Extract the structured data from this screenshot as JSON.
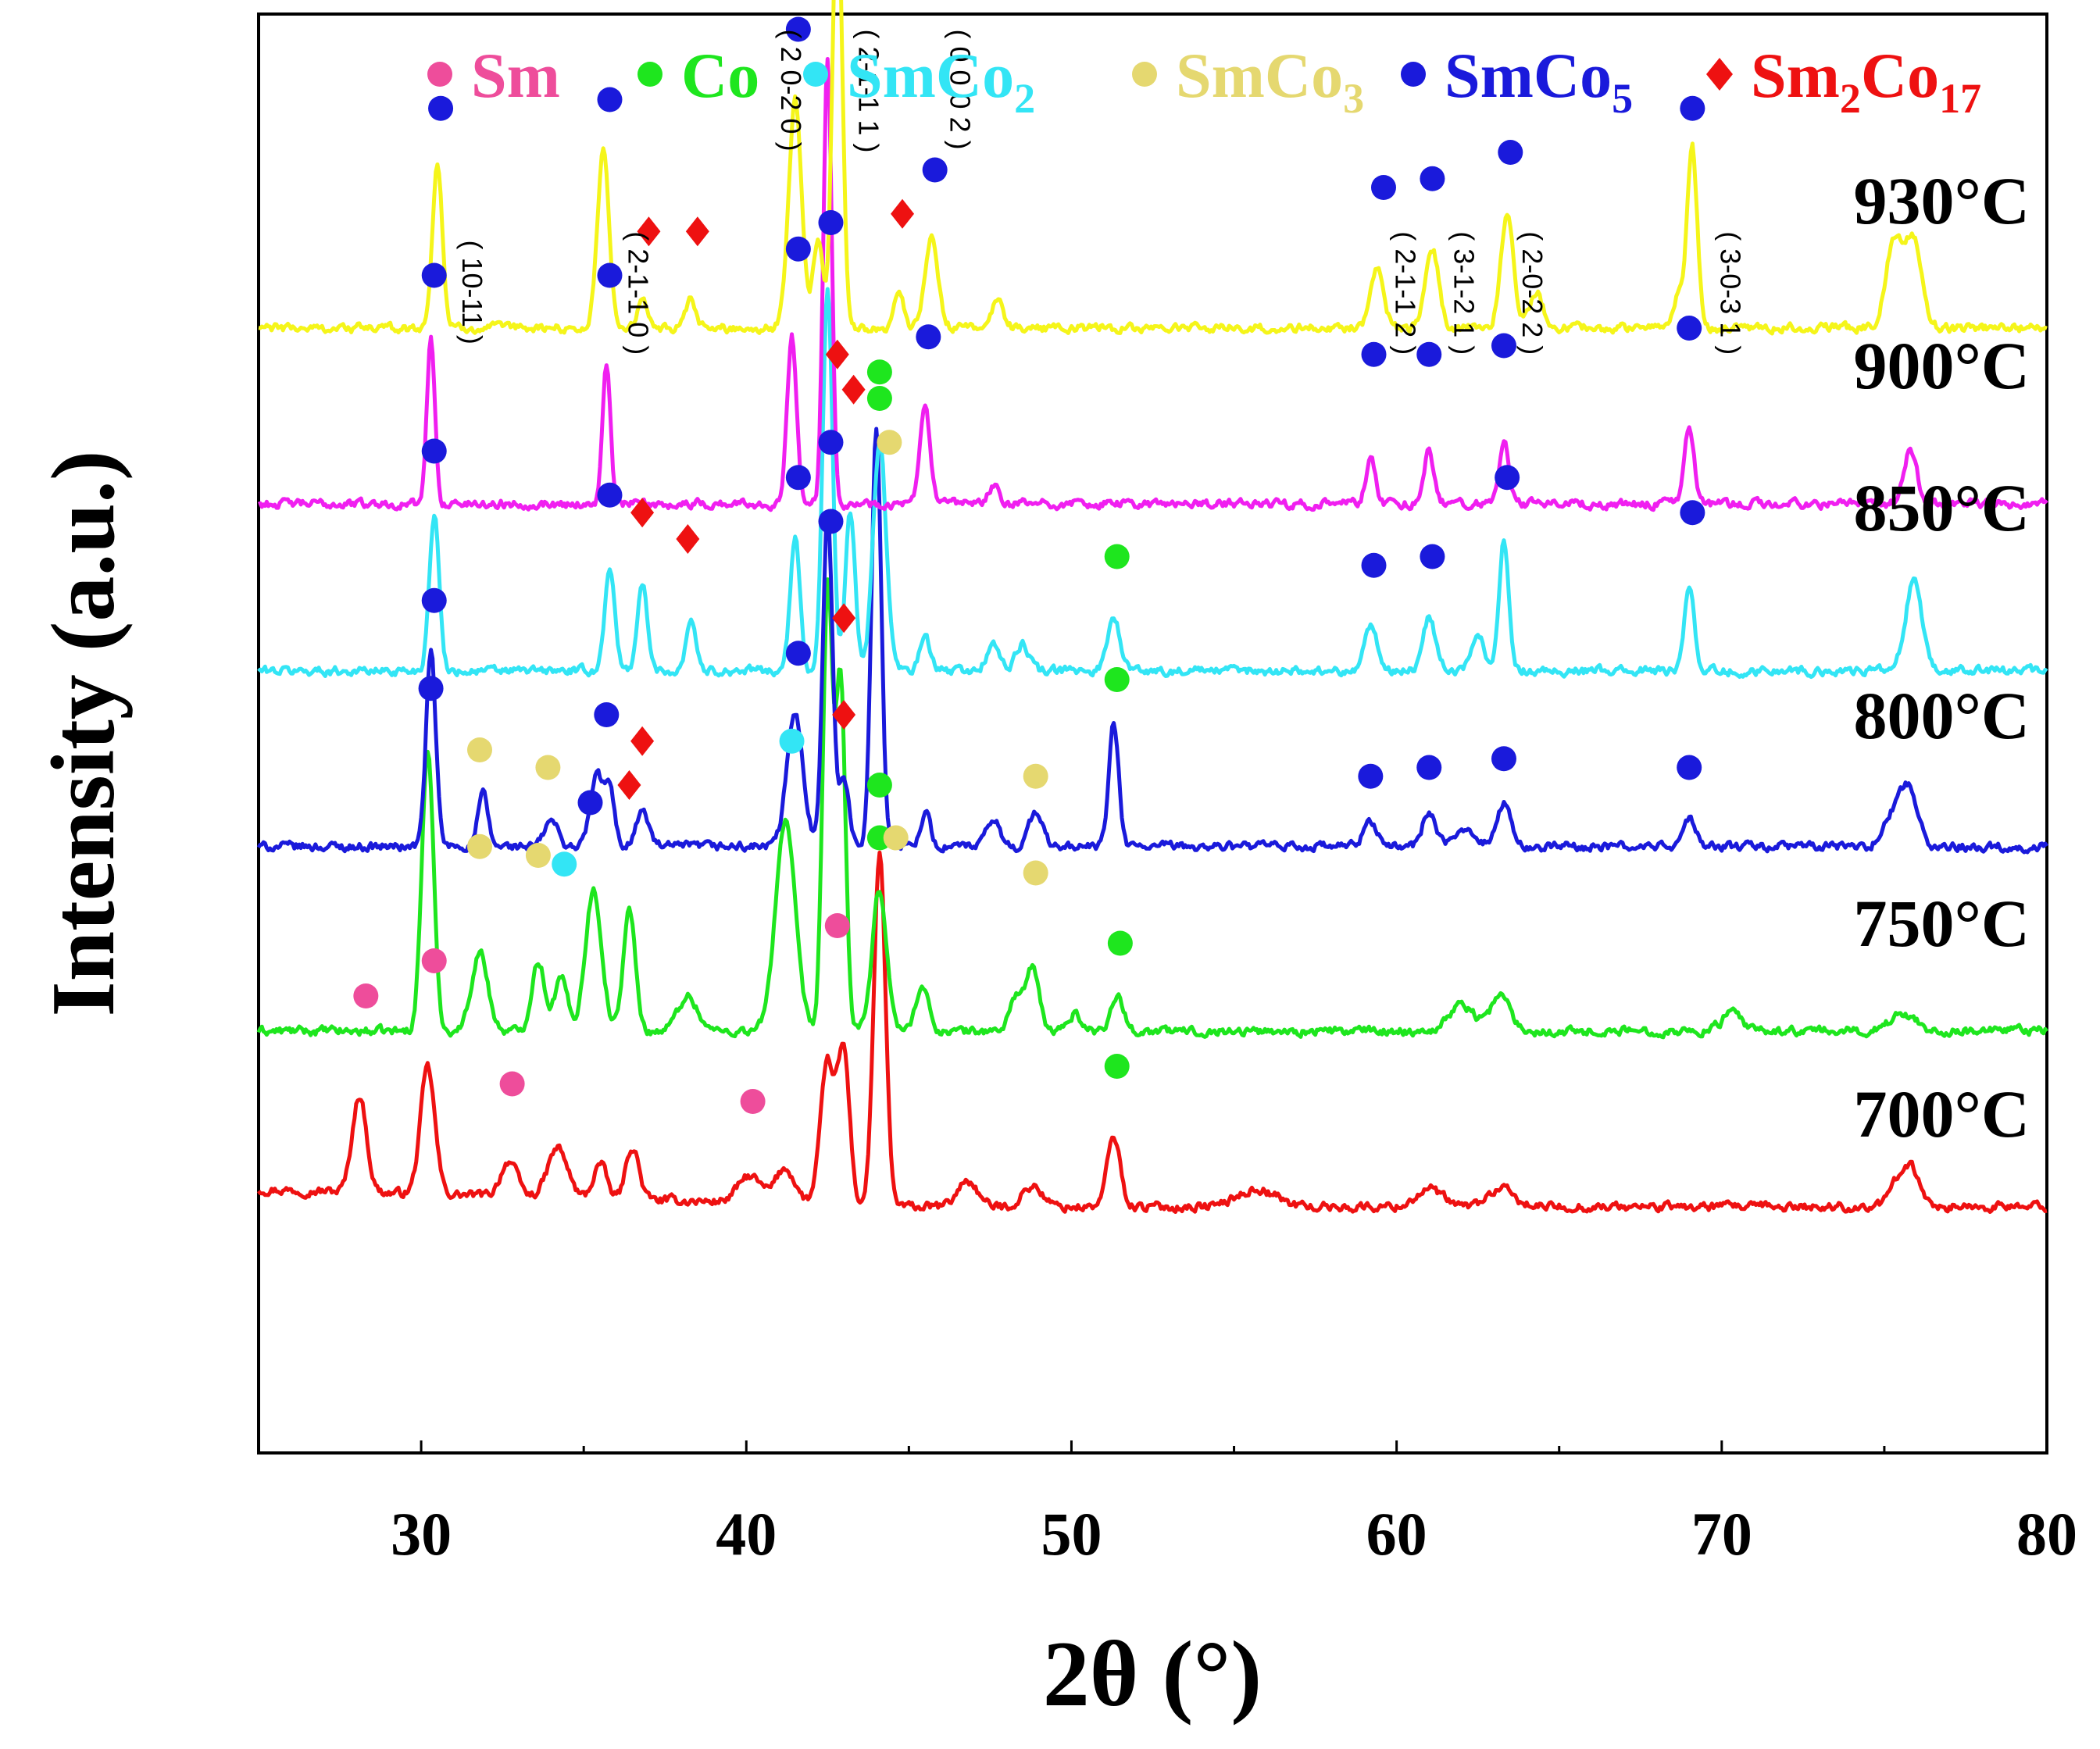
{
  "chart_data": {
    "type": "line",
    "title": "",
    "xlabel": "2θ (°)",
    "ylabel": "Intensity (a.u.)",
    "xlim": [
      25,
      80
    ],
    "xticks": [
      30,
      40,
      50,
      60,
      70,
      80
    ],
    "yticks": [],
    "grid": false,
    "legend": {
      "location": "top",
      "entries": [
        {
          "id": "Sm",
          "label": "Sm",
          "marker": "circle",
          "color": "#ee4d9b"
        },
        {
          "id": "Co",
          "label": "Co",
          "marker": "circle",
          "color": "#1ee61e"
        },
        {
          "id": "SmCo2",
          "label": "SmCo",
          "sub": "2",
          "marker": "circle",
          "color": "#33e5f5"
        },
        {
          "id": "SmCo3",
          "label": "SmCo",
          "sub": "3",
          "marker": "circle",
          "color": "#e5d870"
        },
        {
          "id": "SmCo5",
          "label": "SmCo",
          "sub": "5",
          "marker": "circle",
          "color": "#1a1adb"
        },
        {
          "id": "Sm2Co17",
          "label_parts": [
            [
              "Sm",
              ""
            ],
            [
              "2",
              "sub"
            ],
            [
              "Co",
              ""
            ],
            [
              "17",
              "sub"
            ]
          ],
          "marker": "diamond",
          "color": "#ee1111"
        }
      ]
    },
    "series": [
      {
        "name": "700°C",
        "color": "#ee1111",
        "baseline": 0.0,
        "peaks": [
          [
            28.1,
            0.55,
            0.22
          ],
          [
            30.2,
            0.72,
            0.22
          ],
          [
            32.7,
            0.2,
            0.25
          ],
          [
            34.2,
            0.28,
            0.3
          ],
          [
            35.5,
            0.2,
            0.2
          ],
          [
            36.5,
            0.3,
            0.2
          ],
          [
            40.1,
            0.15,
            0.35
          ],
          [
            41.2,
            0.2,
            0.3
          ],
          [
            42.5,
            0.8,
            0.22
          ],
          [
            43.0,
            0.85,
            0.18
          ],
          [
            44.1,
            2.0,
            0.18
          ],
          [
            46.8,
            0.15,
            0.3
          ],
          [
            48.8,
            0.12,
            0.3
          ],
          [
            51.3,
            0.4,
            0.2
          ],
          [
            55.7,
            0.1,
            0.6
          ],
          [
            61.0,
            0.1,
            0.4
          ],
          [
            63.2,
            0.1,
            0.4
          ],
          [
            75.7,
            0.25,
            0.35
          ]
        ],
        "markers": [
          {
            "phase": "Sm",
            "x": 28.3,
            "h": 1.2
          },
          {
            "phase": "Sm",
            "x": 30.4,
            "h": 1.4
          },
          {
            "phase": "Sm",
            "x": 32.8,
            "h": 0.7
          },
          {
            "phase": "Sm",
            "x": 40.2,
            "h": 0.6
          },
          {
            "phase": "Sm",
            "x": 42.8,
            "h": 1.6
          },
          {
            "phase": "Co",
            "x": 44.1,
            "h": 2.4
          },
          {
            "phase": "Co",
            "x": 51.4,
            "h": 0.8
          }
        ]
      },
      {
        "name": "750°C",
        "color": "#1ee61e",
        "baseline": 1.0,
        "peaks": [
          [
            30.2,
            1.6,
            0.18
          ],
          [
            31.8,
            0.45,
            0.25
          ],
          [
            33.6,
            0.4,
            0.2
          ],
          [
            34.3,
            0.3,
            0.2
          ],
          [
            35.3,
            0.8,
            0.25
          ],
          [
            36.4,
            0.7,
            0.18
          ],
          [
            38.2,
            0.2,
            0.3
          ],
          [
            41.2,
            1.2,
            0.3
          ],
          [
            42.5,
            2.5,
            0.15
          ],
          [
            42.9,
            2.0,
            0.15
          ],
          [
            44.1,
            0.8,
            0.22
          ],
          [
            45.4,
            0.25,
            0.2
          ],
          [
            48.3,
            0.2,
            0.2
          ],
          [
            48.8,
            0.35,
            0.2
          ],
          [
            50.1,
            0.1,
            0.2
          ],
          [
            51.4,
            0.2,
            0.2
          ],
          [
            62.0,
            0.15,
            0.4
          ],
          [
            63.2,
            0.2,
            0.3
          ],
          [
            70.3,
            0.1,
            0.3
          ],
          [
            75.6,
            0.1,
            0.4
          ]
        ],
        "markers": [
          {
            "phase": "SmCo5",
            "x": 30.3,
            "h": 1.95
          },
          {
            "phase": "SmCo3",
            "x": 31.8,
            "h": 1.05
          },
          {
            "phase": "SmCo3",
            "x": 33.6,
            "h": 1.0
          },
          {
            "phase": "SmCo2",
            "x": 34.4,
            "h": 0.95
          },
          {
            "phase": "SmCo5",
            "x": 35.2,
            "h": 1.3
          },
          {
            "phase": "Sm2Co17",
            "x": 36.4,
            "h": 1.4
          },
          {
            "phase": "SmCo2",
            "x": 41.4,
            "h": 1.65
          },
          {
            "phase": "SmCo5",
            "x": 42.6,
            "h": 2.9
          },
          {
            "phase": "Sm2Co17",
            "x": 43.0,
            "h": 2.35
          },
          {
            "phase": "Co",
            "x": 44.1,
            "h": 1.1
          },
          {
            "phase": "SmCo3",
            "x": 44.6,
            "h": 1.1
          },
          {
            "phase": "SmCo3",
            "x": 48.9,
            "h": 0.9
          },
          {
            "phase": "Co",
            "x": 51.5,
            "h": 0.5
          }
        ]
      },
      {
        "name": "800°C",
        "color": "#1a1adb",
        "baseline": 2.05,
        "peaks": [
          [
            30.3,
            1.1,
            0.15
          ],
          [
            31.9,
            0.3,
            0.15
          ],
          [
            34.0,
            0.15,
            0.2
          ],
          [
            35.4,
            0.4,
            0.2
          ],
          [
            35.8,
            0.3,
            0.15
          ],
          [
            36.8,
            0.2,
            0.2
          ],
          [
            41.5,
            0.75,
            0.25
          ],
          [
            42.5,
            1.9,
            0.15
          ],
          [
            43.0,
            0.4,
            0.15
          ],
          [
            44.0,
            2.4,
            0.15
          ],
          [
            45.5,
            0.2,
            0.15
          ],
          [
            47.6,
            0.15,
            0.2
          ],
          [
            48.9,
            0.2,
            0.2
          ],
          [
            51.3,
            0.7,
            0.15
          ],
          [
            59.2,
            0.15,
            0.2
          ],
          [
            61.0,
            0.2,
            0.2
          ],
          [
            62.2,
            0.1,
            0.3
          ],
          [
            63.3,
            0.25,
            0.2
          ],
          [
            69.0,
            0.15,
            0.2
          ],
          [
            75.3,
            0.2,
            0.3
          ],
          [
            75.8,
            0.3,
            0.25
          ]
        ],
        "markers": [
          {
            "phase": "SmCo5",
            "x": 30.4,
            "h": 1.4
          },
          {
            "phase": "SmCo3",
            "x": 31.8,
            "h": 0.55
          },
          {
            "phase": "SmCo3",
            "x": 33.9,
            "h": 0.45
          },
          {
            "phase": "SmCo5",
            "x": 35.7,
            "h": 0.75
          },
          {
            "phase": "Sm2Co17",
            "x": 36.8,
            "h": 0.6
          },
          {
            "phase": "SmCo5",
            "x": 41.6,
            "h": 1.1
          },
          {
            "phase": "SmCo5",
            "x": 42.6,
            "h": 2.3
          },
          {
            "phase": "Sm2Co17",
            "x": 43.0,
            "h": 0.75
          },
          {
            "phase": "Co",
            "x": 44.1,
            "h": 2.7
          },
          {
            "phase": "SmCo3",
            "x": 44.4,
            "h": 2.3
          },
          {
            "phase": "SmCo3",
            "x": 48.9,
            "h": 0.4
          },
          {
            "phase": "Co",
            "x": 51.4,
            "h": 0.95
          },
          {
            "phase": "SmCo5",
            "x": 59.2,
            "h": 0.4
          },
          {
            "phase": "SmCo5",
            "x": 61.0,
            "h": 0.45
          },
          {
            "phase": "SmCo5",
            "x": 63.3,
            "h": 0.5
          },
          {
            "phase": "SmCo5",
            "x": 69.0,
            "h": 0.45
          }
        ]
      },
      {
        "name": "850°C",
        "color": "#33e5f5",
        "baseline": 3.05,
        "peaks": [
          [
            30.4,
            0.9,
            0.15
          ],
          [
            35.8,
            0.6,
            0.15
          ],
          [
            36.8,
            0.5,
            0.15
          ],
          [
            38.3,
            0.3,
            0.15
          ],
          [
            41.5,
            0.75,
            0.15
          ],
          [
            42.5,
            2.2,
            0.15
          ],
          [
            43.2,
            0.9,
            0.15
          ],
          [
            44.1,
            1.3,
            0.2
          ],
          [
            45.5,
            0.2,
            0.15
          ],
          [
            47.6,
            0.15,
            0.2
          ],
          [
            48.5,
            0.15,
            0.2
          ],
          [
            51.3,
            0.3,
            0.2
          ],
          [
            59.2,
            0.25,
            0.2
          ],
          [
            61.0,
            0.3,
            0.2
          ],
          [
            62.5,
            0.2,
            0.2
          ],
          [
            63.3,
            0.75,
            0.15
          ],
          [
            69.0,
            0.5,
            0.15
          ],
          [
            75.9,
            0.5,
            0.25
          ]
        ],
        "markers": [
          {
            "phase": "SmCo5",
            "x": 30.4,
            "h": 1.25
          },
          {
            "phase": "SmCo5",
            "x": 35.8,
            "h": 1.0
          },
          {
            "phase": "Sm2Co17",
            "x": 36.8,
            "h": 0.9
          },
          {
            "phase": "Sm2Co17",
            "x": 38.2,
            "h": 0.75
          },
          {
            "phase": "SmCo5",
            "x": 41.6,
            "h": 1.1
          },
          {
            "phase": "SmCo5",
            "x": 42.6,
            "h": 2.55
          },
          {
            "phase": "Sm2Co17",
            "x": 42.8,
            "h": 1.8
          },
          {
            "phase": "Sm2Co17",
            "x": 43.3,
            "h": 1.6
          },
          {
            "phase": "Co",
            "x": 44.1,
            "h": 1.55
          },
          {
            "phase": "Co",
            "x": 51.4,
            "h": 0.65
          },
          {
            "phase": "SmCo5",
            "x": 59.3,
            "h": 0.6
          },
          {
            "phase": "SmCo5",
            "x": 61.1,
            "h": 0.65
          },
          {
            "phase": "SmCo5",
            "x": 63.4,
            "h": 1.1
          },
          {
            "phase": "SmCo5",
            "x": 69.1,
            "h": 0.9
          }
        ]
      },
      {
        "name": "900°C",
        "color": "#f01ff0",
        "baseline": 4.0,
        "peaks": [
          [
            30.3,
            0.95,
            0.12
          ],
          [
            35.7,
            0.8,
            0.12
          ],
          [
            41.4,
            0.95,
            0.15
          ],
          [
            42.5,
            2.55,
            0.13
          ],
          [
            45.5,
            0.55,
            0.15
          ],
          [
            47.6,
            0.1,
            0.15
          ],
          [
            59.2,
            0.25,
            0.15
          ],
          [
            61.0,
            0.3,
            0.15
          ],
          [
            63.3,
            0.35,
            0.15
          ],
          [
            69.0,
            0.45,
            0.15
          ],
          [
            75.8,
            0.3,
            0.2
          ]
        ],
        "markers": [
          {
            "phase": "SmCo5",
            "x": 30.4,
            "h": 1.3
          },
          {
            "phase": "SmCo5",
            "x": 35.8,
            "h": 1.3
          },
          {
            "phase": "SmCo5",
            "x": 41.6,
            "h": 1.45
          },
          {
            "phase": "SmCo5",
            "x": 42.6,
            "h": 3.0
          },
          {
            "phase": "SmCo5",
            "x": 45.6,
            "h": 0.95
          },
          {
            "phase": "SmCo5",
            "x": 59.3,
            "h": 0.85
          },
          {
            "phase": "SmCo5",
            "x": 61.0,
            "h": 0.85
          },
          {
            "phase": "SmCo5",
            "x": 63.3,
            "h": 0.9
          },
          {
            "phase": "SmCo5",
            "x": 69.0,
            "h": 1.0
          }
        ],
        "hkl": [
          {
            "x": 31.5,
            "h": 1.5,
            "label": "( 10-11 )"
          },
          {
            "x": 36.6,
            "h": 1.55,
            "label": "( 2-1-1 0 )"
          },
          {
            "x": 41.3,
            "h": 2.7,
            "label": "( 2 0-2 0 )"
          },
          {
            "x": 43.7,
            "h": 2.7,
            "label": "( 2-1-1 1 )"
          },
          {
            "x": 46.5,
            "h": 2.7,
            "label": "( 0 0 0 2 )"
          },
          {
            "x": 60.2,
            "h": 1.55,
            "label": "( 2-1-1 2 )"
          },
          {
            "x": 62.0,
            "h": 1.55,
            "label": "( 3-1-2 1 )"
          },
          {
            "x": 64.1,
            "h": 1.55,
            "label": "( 2-0-2 2 )"
          },
          {
            "x": 70.2,
            "h": 1.55,
            "label": "( 3-0-3 1 )"
          }
        ]
      },
      {
        "name": "930°C",
        "color": "#f5f51a",
        "baseline": 5.0,
        "peaks": [
          [
            30.5,
            0.95,
            0.15
          ],
          [
            35.6,
            1.0,
            0.18
          ],
          [
            36.8,
            0.15,
            0.15
          ],
          [
            38.3,
            0.15,
            0.15
          ],
          [
            41.5,
            1.3,
            0.2
          ],
          [
            42.2,
            0.5,
            0.15
          ],
          [
            42.8,
            2.5,
            0.15
          ],
          [
            44.7,
            0.2,
            0.15
          ],
          [
            45.7,
            0.5,
            0.2
          ],
          [
            47.7,
            0.15,
            0.2
          ],
          [
            59.4,
            0.35,
            0.2
          ],
          [
            61.1,
            0.45,
            0.2
          ],
          [
            63.4,
            0.65,
            0.2
          ],
          [
            64.3,
            0.2,
            0.2
          ],
          [
            68.7,
            0.2,
            0.2
          ],
          [
            69.1,
            1.0,
            0.15
          ],
          [
            75.3,
            0.5,
            0.25
          ],
          [
            75.9,
            0.5,
            0.25
          ]
        ],
        "markers": [
          {
            "phase": "SmCo5",
            "x": 30.6,
            "h": 1.25
          },
          {
            "phase": "SmCo5",
            "x": 35.8,
            "h": 1.3
          },
          {
            "phase": "Sm2Co17",
            "x": 37.0,
            "h": 0.55
          },
          {
            "phase": "Sm2Co17",
            "x": 38.5,
            "h": 0.55
          },
          {
            "phase": "SmCo5",
            "x": 41.6,
            "h": 1.7
          },
          {
            "phase": "SmCo5",
            "x": 42.8,
            "h": 2.85
          },
          {
            "phase": "Sm2Co17",
            "x": 44.8,
            "h": 0.65
          },
          {
            "phase": "SmCo5",
            "x": 45.8,
            "h": 0.9
          },
          {
            "phase": "SmCo5",
            "x": 59.6,
            "h": 0.8
          },
          {
            "phase": "SmCo5",
            "x": 61.1,
            "h": 0.85
          },
          {
            "phase": "SmCo5",
            "x": 63.5,
            "h": 1.0
          },
          {
            "phase": "SmCo5",
            "x": 69.1,
            "h": 1.25
          }
        ]
      }
    ]
  }
}
